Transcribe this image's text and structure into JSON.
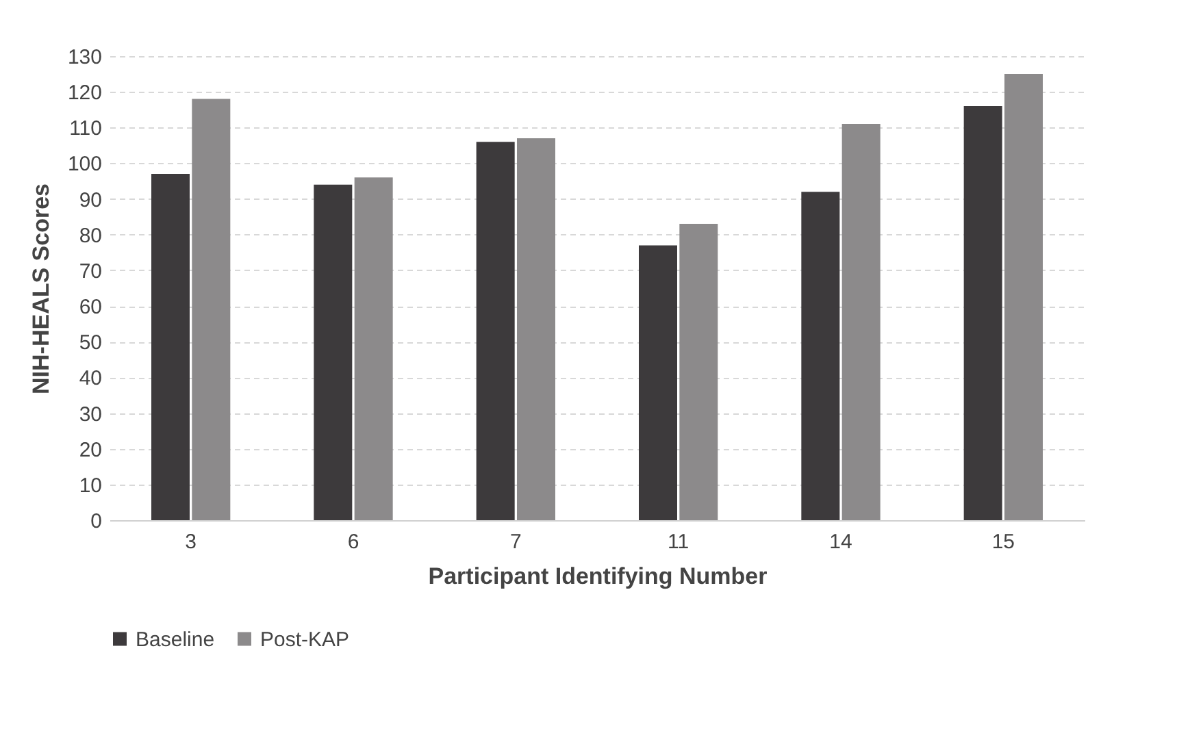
{
  "chart_data": {
    "type": "bar",
    "xlabel": "Participant Identifying Number",
    "ylabel": "NIH-HEALS Scores",
    "categories": [
      "3",
      "6",
      "7",
      "11",
      "14",
      "15"
    ],
    "series": [
      {
        "name": "Baseline",
        "color": "#3d3a3c",
        "values": [
          97,
          94,
          106,
          77,
          92,
          116
        ]
      },
      {
        "name": "Post-KAP",
        "color": "#8c8a8b",
        "values": [
          118,
          96,
          107,
          83,
          111,
          125
        ]
      }
    ],
    "ylim": [
      0,
      130
    ],
    "yticks": [
      0,
      10,
      20,
      30,
      40,
      50,
      60,
      70,
      80,
      90,
      100,
      110,
      120,
      130
    ],
    "grid": "y",
    "legend": "bottom"
  }
}
